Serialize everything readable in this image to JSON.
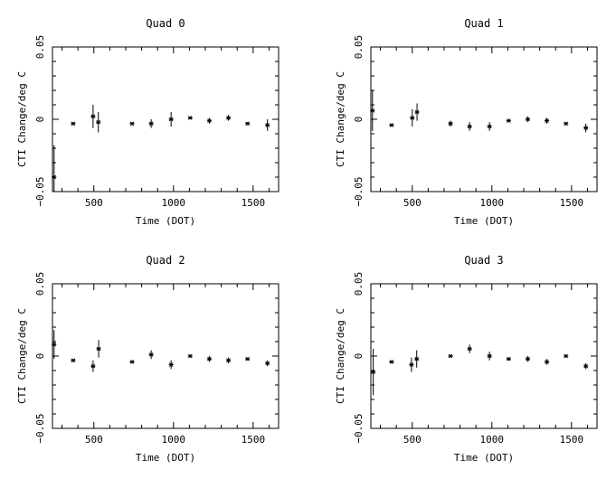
{
  "chart_data": [
    {
      "type": "scatter",
      "title": "Quad 0",
      "xlabel": "Time (DOT)",
      "ylabel": "CTI Change/deg C",
      "xlim": [
        240,
        1660
      ],
      "ylim": [
        -0.05,
        0.05
      ],
      "xticks": [
        "500",
        "1000",
        "1500"
      ],
      "yticks": [
        "−0.05",
        "0",
        "0.05"
      ],
      "points": [
        {
          "x": 250,
          "y": -0.04,
          "err": 0.022
        },
        {
          "x": 370,
          "y": -0.003,
          "err": 0.001
        },
        {
          "x": 495,
          "y": 0.002,
          "err": 0.008
        },
        {
          "x": 528,
          "y": -0.002,
          "err": 0.007
        },
        {
          "x": 740,
          "y": -0.003,
          "err": 0.001
        },
        {
          "x": 860,
          "y": -0.003,
          "err": 0.003
        },
        {
          "x": 985,
          "y": 0.0,
          "err": 0.005
        },
        {
          "x": 1105,
          "y": 0.001,
          "err": 0.001
        },
        {
          "x": 1225,
          "y": -0.001,
          "err": 0.002
        },
        {
          "x": 1345,
          "y": 0.001,
          "err": 0.002
        },
        {
          "x": 1465,
          "y": -0.003,
          "err": 0.001
        },
        {
          "x": 1590,
          "y": -0.004,
          "err": 0.004
        }
      ]
    },
    {
      "type": "scatter",
      "title": "Quad 1",
      "xlabel": "Time (DOT)",
      "ylabel": "CTI Change/deg C",
      "xlim": [
        240,
        1660
      ],
      "ylim": [
        -0.05,
        0.05
      ],
      "xticks": [
        "500",
        "1000",
        "1500"
      ],
      "yticks": [
        "−0.05",
        "0",
        "0.05"
      ],
      "points": [
        {
          "x": 250,
          "y": 0.006,
          "err": 0.014
        },
        {
          "x": 370,
          "y": -0.004,
          "err": 0.001
        },
        {
          "x": 500,
          "y": 0.001,
          "err": 0.006
        },
        {
          "x": 530,
          "y": 0.005,
          "err": 0.006
        },
        {
          "x": 740,
          "y": -0.003,
          "err": 0.002
        },
        {
          "x": 860,
          "y": -0.005,
          "err": 0.003
        },
        {
          "x": 985,
          "y": -0.005,
          "err": 0.003
        },
        {
          "x": 1105,
          "y": -0.001,
          "err": 0.001
        },
        {
          "x": 1225,
          "y": 0.0,
          "err": 0.002
        },
        {
          "x": 1345,
          "y": -0.001,
          "err": 0.002
        },
        {
          "x": 1465,
          "y": -0.003,
          "err": 0.001
        },
        {
          "x": 1590,
          "y": -0.006,
          "err": 0.003
        }
      ]
    },
    {
      "type": "scatter",
      "title": "Quad 2",
      "xlabel": "Time (DOT)",
      "ylabel": "CTI Change/deg C",
      "xlim": [
        240,
        1660
      ],
      "ylim": [
        -0.05,
        0.05
      ],
      "xticks": [
        "500",
        "1000",
        "1500"
      ],
      "yticks": [
        "−0.05",
        "0",
        "0.05"
      ],
      "points": [
        {
          "x": 250,
          "y": 0.008,
          "err": 0.01
        },
        {
          "x": 370,
          "y": -0.003,
          "err": 0.001
        },
        {
          "x": 495,
          "y": -0.007,
          "err": 0.004
        },
        {
          "x": 530,
          "y": 0.005,
          "err": 0.006
        },
        {
          "x": 740,
          "y": -0.004,
          "err": 0.001
        },
        {
          "x": 860,
          "y": 0.001,
          "err": 0.003
        },
        {
          "x": 985,
          "y": -0.006,
          "err": 0.003
        },
        {
          "x": 1105,
          "y": 0.0,
          "err": 0.001
        },
        {
          "x": 1225,
          "y": -0.002,
          "err": 0.002
        },
        {
          "x": 1345,
          "y": -0.003,
          "err": 0.002
        },
        {
          "x": 1465,
          "y": -0.002,
          "err": 0.001
        },
        {
          "x": 1590,
          "y": -0.005,
          "err": 0.002
        }
      ]
    },
    {
      "type": "scatter",
      "title": "Quad 3",
      "xlabel": "Time (DOT)",
      "ylabel": "CTI Change/deg C",
      "xlim": [
        240,
        1660
      ],
      "ylim": [
        -0.05,
        0.05
      ],
      "xticks": [
        "500",
        "1000",
        "1500"
      ],
      "yticks": [
        "−0.05",
        "0",
        "0.05"
      ],
      "points": [
        {
          "x": 255,
          "y": -0.011,
          "err": 0.016
        },
        {
          "x": 370,
          "y": -0.004,
          "err": 0.001
        },
        {
          "x": 495,
          "y": -0.006,
          "err": 0.005
        },
        {
          "x": 528,
          "y": -0.002,
          "err": 0.006
        },
        {
          "x": 740,
          "y": 0.0,
          "err": 0.001
        },
        {
          "x": 860,
          "y": 0.005,
          "err": 0.003
        },
        {
          "x": 985,
          "y": 0.0,
          "err": 0.003
        },
        {
          "x": 1105,
          "y": -0.002,
          "err": 0.001
        },
        {
          "x": 1225,
          "y": -0.002,
          "err": 0.002
        },
        {
          "x": 1345,
          "y": -0.004,
          "err": 0.002
        },
        {
          "x": 1465,
          "y": 0.0,
          "err": 0.001
        },
        {
          "x": 1590,
          "y": -0.007,
          "err": 0.002
        }
      ]
    }
  ]
}
